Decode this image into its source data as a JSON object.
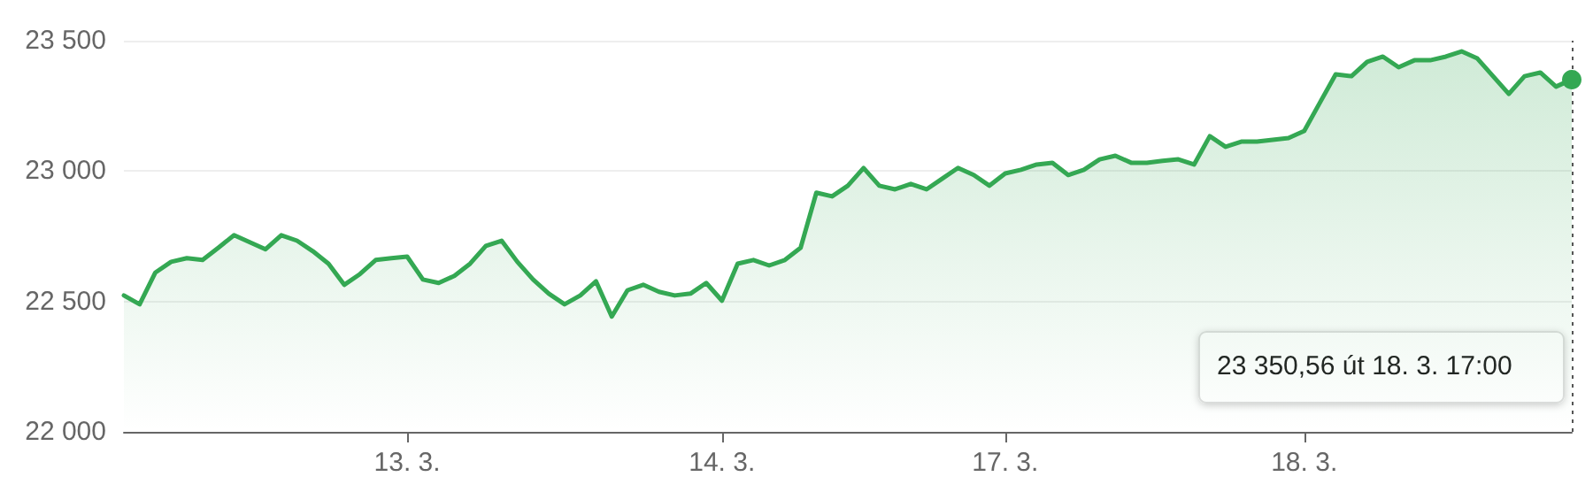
{
  "chart_data": {
    "type": "area",
    "categories": [
      null,
      null,
      null,
      null,
      null,
      null,
      null,
      null,
      null,
      null,
      null,
      null,
      null,
      null,
      null,
      null,
      null,
      null,
      "13. 3.",
      null,
      null,
      null,
      null,
      null,
      null,
      null,
      null,
      null,
      null,
      null,
      null,
      null,
      null,
      null,
      null,
      null,
      null,
      null,
      "14. 3.",
      null,
      null,
      null,
      null,
      null,
      null,
      null,
      null,
      null,
      null,
      null,
      null,
      null,
      null,
      null,
      null,
      null,
      "17. 3.",
      null,
      null,
      null,
      null,
      null,
      null,
      null,
      null,
      null,
      null,
      null,
      null,
      null,
      null,
      null,
      null,
      null,
      null,
      "18. 3.",
      null,
      null,
      null,
      null,
      null,
      null,
      null,
      null,
      null,
      null,
      null,
      null,
      null,
      null,
      null,
      null,
      null
    ],
    "series": [
      {
        "color": "#34a853",
        "values": [
          22523,
          22489,
          22611,
          22652,
          22666,
          22659,
          22706,
          22754,
          22727,
          22700,
          22754,
          22733,
          22693,
          22645,
          22564,
          22605,
          22659,
          22666,
          22672,
          22584,
          22571,
          22598,
          22645,
          22713,
          22733,
          22652,
          22584,
          22530,
          22489,
          22523,
          22577,
          22442,
          22543,
          22564,
          22537,
          22523,
          22530,
          22571,
          22503,
          22645,
          22659,
          22638,
          22659,
          22706,
          22917,
          22903,
          22944,
          23012,
          22944,
          22930,
          22951,
          22930,
          22971,
          23012,
          22985,
          22944,
          22991,
          23005,
          23025,
          23032,
          22985,
          23005,
          23045,
          23059,
          23032,
          23032,
          23039,
          23045,
          23025,
          23134,
          23093,
          23113,
          23113,
          23120,
          23127,
          23154,
          23263,
          23371,
          23364,
          23419,
          23439,
          23398,
          23425,
          23425,
          23439,
          23459,
          23432,
          23364,
          23296,
          23364,
          23378,
          23324,
          23351
        ]
      }
    ],
    "ylim": [
      22000,
      23500
    ],
    "yticks": [
      {
        "value": 22000,
        "label": "22 000"
      },
      {
        "value": 22500,
        "label": "22 500"
      },
      {
        "value": 23000,
        "label": "23 000"
      },
      {
        "value": 23500,
        "label": "23 500"
      }
    ],
    "grid": "y",
    "marker": "none",
    "line_style": "solid",
    "annotations": [
      "23 350,56 út 18. 3. 17:00"
    ]
  }
}
